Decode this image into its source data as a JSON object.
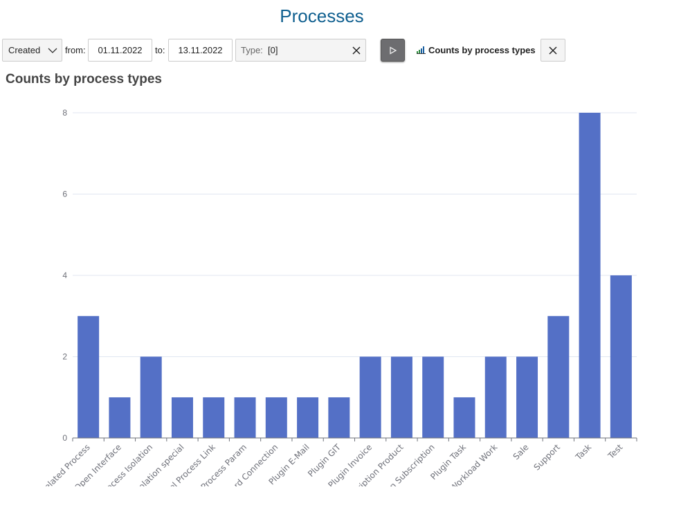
{
  "page_title": "Processes",
  "toolbar": {
    "date_mode": "Created",
    "from_label": "from:",
    "from_value": "01.11.2022",
    "to_label": "to:",
    "to_value": "13.11.2022",
    "type_label": "Type:",
    "type_value": "[0]",
    "clear_icon": "x-icon",
    "run_icon": "play-icon",
    "report_link": "Counts by process types",
    "report_icon": "bar-chart-icon",
    "close_icon": "x-icon"
  },
  "section_title": "Counts by process types",
  "chart_data": {
    "type": "bar",
    "categories": [
      "Related Process",
      "l Open Interface",
      "Process Isolation",
      "Isolation special",
      "nel Process Link",
      "l Process Param",
      "ard Connection",
      "Plugin E-Mail",
      "Plugin GIT",
      "Plugin Invoice",
      "ription Product",
      "ion Subscription",
      "Plugin Task",
      "Workload Work",
      "Sale",
      "Support",
      "Task",
      "Test"
    ],
    "values": [
      3,
      1,
      2,
      1,
      1,
      1,
      1,
      1,
      1,
      2,
      2,
      2,
      1,
      2,
      2,
      3,
      8,
      4
    ],
    "ylim": [
      0,
      8
    ],
    "yticks": [
      "0",
      "2",
      "4",
      "6",
      "8"
    ],
    "grid": true,
    "bar_color": "#5470c6"
  }
}
